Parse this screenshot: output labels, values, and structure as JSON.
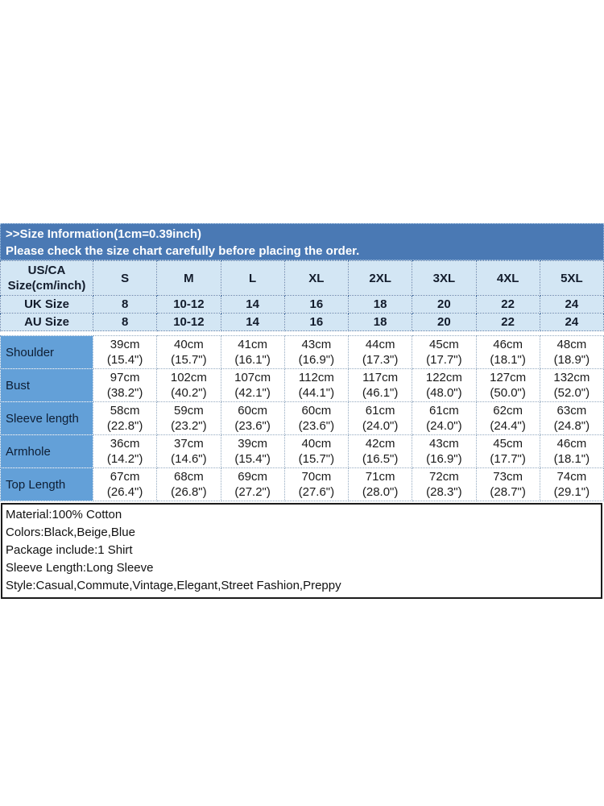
{
  "banner": {
    "line1": ">>Size Information(1cm=0.39inch)",
    "line2": "Please check the size chart carefully before placing the order."
  },
  "size_chart": {
    "corner_label": "US/CA\nSize(cm/inch)",
    "sizes": [
      "S",
      "M",
      "L",
      "XL",
      "2XL",
      "3XL",
      "4XL",
      "5XL"
    ],
    "uk_row": {
      "label": "UK Size",
      "values": [
        "8",
        "10-12",
        "14",
        "16",
        "18",
        "20",
        "22",
        "24"
      ]
    },
    "au_row": {
      "label": "AU Size",
      "values": [
        "8",
        "10-12",
        "14",
        "16",
        "18",
        "20",
        "22",
        "24"
      ]
    },
    "rows": [
      {
        "label": "Shoulder",
        "values": [
          "39cm\n(15.4\")",
          "40cm\n(15.7\")",
          "41cm\n(16.1\")",
          "43cm\n(16.9\")",
          "44cm\n(17.3\")",
          "45cm\n(17.7\")",
          "46cm\n(18.1\")",
          "48cm\n(18.9\")"
        ]
      },
      {
        "label": "Bust",
        "values": [
          "97cm\n(38.2\")",
          "102cm\n(40.2\")",
          "107cm\n(42.1\")",
          "112cm\n(44.1\")",
          "117cm\n(46.1\")",
          "122cm\n(48.0\")",
          "127cm\n(50.0\")",
          "132cm\n(52.0\")"
        ]
      },
      {
        "label": "Sleeve length",
        "values": [
          "58cm\n(22.8\")",
          "59cm\n(23.2\")",
          "60cm\n(23.6\")",
          "60cm\n(23.6\")",
          "61cm\n(24.0\")",
          "61cm\n(24.0\")",
          "62cm\n(24.4\")",
          "63cm\n(24.8\")"
        ]
      },
      {
        "label": "Armhole",
        "values": [
          "36cm\n(14.2\")",
          "37cm\n(14.6\")",
          "39cm\n(15.4\")",
          "40cm\n(15.7\")",
          "42cm\n(16.5\")",
          "43cm\n(16.9\")",
          "45cm\n(17.7\")",
          "46cm\n(18.1\")"
        ]
      },
      {
        "label": "Top Length",
        "values": [
          "67cm\n(26.4\")",
          "68cm\n(26.8\")",
          "69cm\n(27.2\")",
          "70cm\n(27.6\")",
          "71cm\n(28.0\")",
          "72cm\n(28.3\")",
          "73cm\n(28.7\")",
          "74cm\n(29.1\")"
        ]
      }
    ]
  },
  "details": {
    "lines": [
      "Material:100% Cotton",
      "Colors:Black,Beige,Blue",
      "Package include:1 Shirt",
      "Sleeve Length:Long Sleeve",
      "Style:Casual,Commute,Vintage,Elegant,Street Fashion,Preppy"
    ]
  },
  "colors": {
    "banner_blue": "#4a79b4",
    "header_light_blue": "#d3e6f4",
    "label_column_blue": "#63a0d8",
    "info_border": "#1c1c1c"
  }
}
